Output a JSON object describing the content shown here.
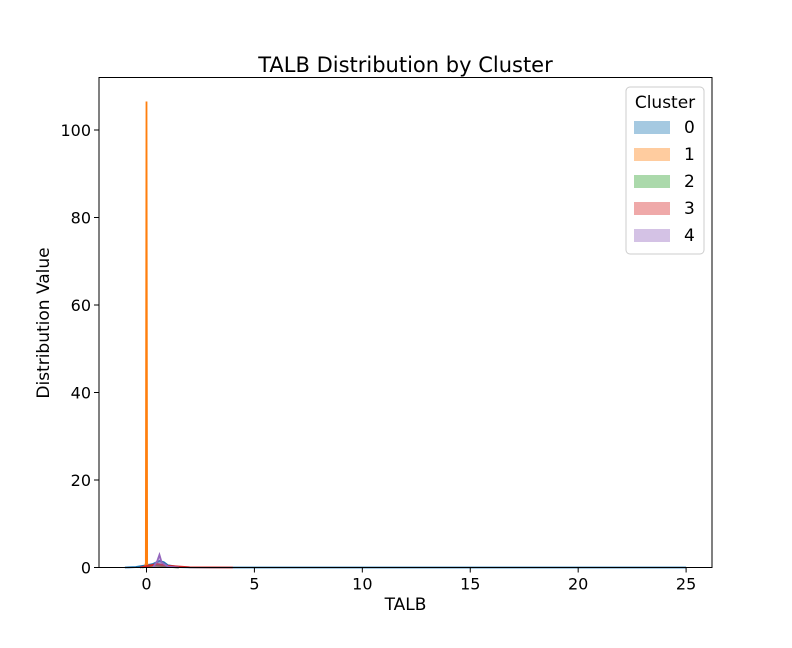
{
  "chart_data": {
    "type": "area",
    "title": "TALB Distribution by Cluster",
    "xlabel": "TALB",
    "ylabel": "Distribution Value",
    "xlim": [
      -2.2,
      26.2
    ],
    "ylim": [
      0,
      112
    ],
    "xticks": [
      0,
      5,
      10,
      15,
      20,
      25
    ],
    "yticks": [
      0,
      20,
      40,
      60,
      80,
      100
    ],
    "grid": false,
    "legend": {
      "title": "Cluster",
      "placement": "top-right"
    },
    "series": [
      {
        "name": "0",
        "color": "#1f77b4",
        "points": [
          [
            -1,
            0
          ],
          [
            -0.5,
            0.1
          ],
          [
            0,
            0.5
          ],
          [
            0.3,
            0.8
          ],
          [
            0.6,
            1.5
          ],
          [
            0.8,
            1.2
          ],
          [
            1.0,
            0.5
          ],
          [
            1.5,
            0.1
          ],
          [
            2.0,
            0.02
          ],
          [
            3.0,
            0
          ],
          [
            5,
            0
          ],
          [
            10,
            0
          ],
          [
            15,
            0
          ],
          [
            20,
            0
          ],
          [
            25,
            0
          ]
        ]
      },
      {
        "name": "1",
        "color": "#ff7f0e",
        "points": [
          [
            -0.08,
            0
          ],
          [
            -0.03,
            1
          ],
          [
            0,
            106.5
          ],
          [
            0.03,
            1
          ],
          [
            0.08,
            0
          ]
        ]
      },
      {
        "name": "2",
        "color": "#2ca02c",
        "points": [
          [
            -0.2,
            0
          ],
          [
            0.1,
            0.3
          ],
          [
            0.4,
            0.6
          ],
          [
            0.8,
            0.2
          ],
          [
            1.5,
            0
          ]
        ]
      },
      {
        "name": "3",
        "color": "#d62728",
        "points": [
          [
            -0.3,
            0
          ],
          [
            0,
            0.3
          ],
          [
            0.5,
            0.8
          ],
          [
            1.0,
            0.4
          ],
          [
            2.0,
            0.05
          ],
          [
            4.0,
            0
          ]
        ]
      },
      {
        "name": "4",
        "color": "#9467bd",
        "points": [
          [
            0.3,
            0
          ],
          [
            0.5,
            1.5
          ],
          [
            0.6,
            2.9
          ],
          [
            0.7,
            1.2
          ],
          [
            1.0,
            0.2
          ],
          [
            1.5,
            0
          ]
        ]
      }
    ]
  }
}
